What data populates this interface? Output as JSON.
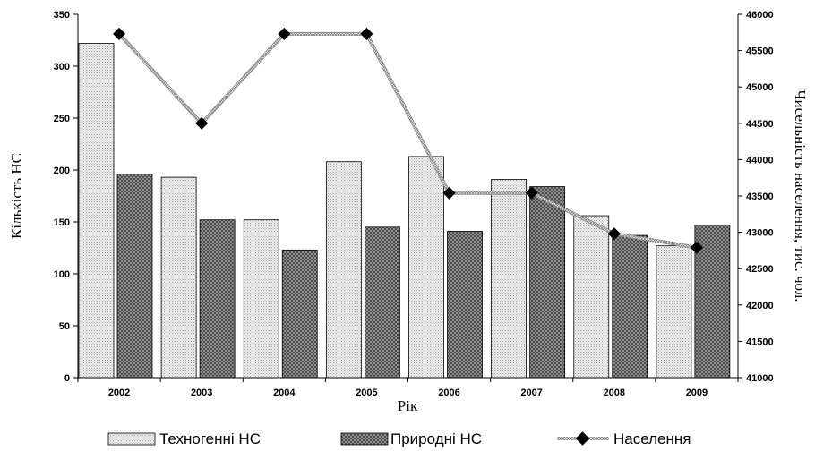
{
  "chart_data": {
    "type": "bar",
    "categories": [
      "2002",
      "2003",
      "2004",
      "2005",
      "2006",
      "2007",
      "2008",
      "2009"
    ],
    "series": [
      {
        "name": "Техногенні НС",
        "type": "bar",
        "axis": "left",
        "values": [
          322,
          193,
          152,
          208,
          213,
          191,
          156,
          127
        ]
      },
      {
        "name": "Природні НС",
        "type": "bar",
        "axis": "left",
        "values": [
          196,
          152,
          123,
          145,
          141,
          184,
          137,
          147
        ]
      },
      {
        "name": "Населення",
        "type": "line",
        "axis": "right",
        "values": [
          45730,
          44500,
          45730,
          45730,
          43540,
          43540,
          42980,
          42790
        ]
      }
    ],
    "xlabel": "Рік",
    "ylabel": "Кількість НС",
    "ylabel_right": "Чисельність населення, тис. чол.",
    "ylim": [
      0,
      350
    ],
    "ylim_right": [
      41000,
      46000
    ],
    "yticks": [
      "0",
      "50",
      "100",
      "150",
      "200",
      "250",
      "300",
      "350"
    ],
    "yticks_right": [
      "41000",
      "41500",
      "42000",
      "42500",
      "43000",
      "43500",
      "44000",
      "44500",
      "45000",
      "45500",
      "46000"
    ],
    "legend_position": "bottom",
    "grid": false,
    "colors": {
      "techno": "#e6e6e6",
      "natural": "#4a4a4a",
      "line": "#9a9a9a",
      "marker": "#000000"
    }
  }
}
